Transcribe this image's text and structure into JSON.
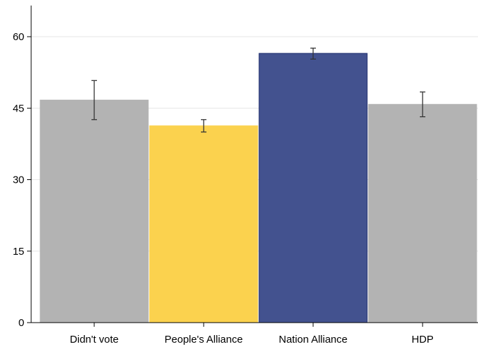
{
  "chart_data": {
    "type": "bar",
    "categories": [
      "Didn't vote",
      "People's Alliance",
      "Nation Alliance",
      "HDP"
    ],
    "values": [
      46.7,
      41.3,
      56.5,
      45.8
    ],
    "error_bars": [
      {
        "low": 42.6,
        "high": 50.8
      },
      {
        "low": 40.0,
        "high": 42.6
      },
      {
        "low": 55.3,
        "high": 57.6
      },
      {
        "low": 43.2,
        "high": 48.4
      }
    ],
    "colors": [
      "#b3b3b3",
      "#fbd24e",
      "#43528f",
      "#b3b3b3"
    ],
    "edge_colors": [
      "#b3b3b3",
      "#fbd24e",
      "#1b2a6b",
      "#b3b3b3"
    ],
    "ylim": [
      0,
      60
    ],
    "yticks": [
      0,
      15,
      30,
      45,
      60
    ],
    "grid": true,
    "title": "",
    "xlabel": "",
    "ylabel": ""
  }
}
